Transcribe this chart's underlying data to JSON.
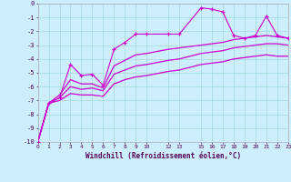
{
  "background_color": "#cceeff",
  "grid_color": "#aadddd",
  "line_color": "#cc00cc",
  "xlabel": "Windchill (Refroidissement éolien,°C)",
  "xlim": [
    0,
    23
  ],
  "ylim": [
    -10,
    0
  ],
  "xtick_vals": [
    0,
    1,
    2,
    3,
    4,
    5,
    6,
    7,
    8,
    9,
    10,
    12,
    13,
    15,
    16,
    17,
    18,
    19,
    20,
    21,
    22,
    23
  ],
  "xtick_labels": [
    "0",
    "1",
    "2",
    "3",
    "4",
    "5",
    "6",
    "7",
    "8",
    "9",
    "10",
    "12",
    "13",
    "15",
    "16",
    "17",
    "18",
    "19",
    "20",
    "21",
    "22",
    "23"
  ],
  "ytick_vals": [
    0,
    -1,
    -2,
    -3,
    -4,
    -5,
    -6,
    -7,
    -8,
    -9,
    -10
  ],
  "ytick_labels": [
    "0",
    "-1",
    "-2",
    "-3",
    "-4",
    "-5",
    "-6",
    "-7",
    "-8",
    "-9",
    "-10"
  ],
  "line1_x": [
    0,
    1,
    2,
    3,
    4,
    5,
    6,
    7,
    8,
    9,
    10,
    12,
    13,
    15,
    16,
    17,
    18,
    19,
    20,
    21,
    22,
    23
  ],
  "line1_y": [
    -10.0,
    -7.2,
    -6.8,
    -4.4,
    -5.2,
    -5.1,
    -5.9,
    -3.3,
    -2.8,
    -2.2,
    -2.2,
    -2.2,
    -2.2,
    -0.3,
    -0.4,
    -0.6,
    -2.3,
    -2.5,
    -2.3,
    -0.9,
    -2.3,
    -2.5
  ],
  "line2_x": [
    0,
    1,
    2,
    3,
    4,
    5,
    6,
    7,
    8,
    9,
    10,
    12,
    13,
    15,
    16,
    17,
    18,
    19,
    20,
    21,
    22,
    23
  ],
  "line2_y": [
    -10.0,
    -7.2,
    -6.6,
    -5.5,
    -5.8,
    -5.8,
    -6.1,
    -4.5,
    -4.1,
    -3.7,
    -3.6,
    -3.3,
    -3.2,
    -3.0,
    -2.9,
    -2.8,
    -2.6,
    -2.5,
    -2.4,
    -2.3,
    -2.4,
    -2.5
  ],
  "line3_x": [
    0,
    1,
    2,
    3,
    4,
    5,
    6,
    7,
    8,
    9,
    10,
    12,
    13,
    15,
    16,
    17,
    18,
    19,
    20,
    21,
    22,
    23
  ],
  "line3_y": [
    -10.0,
    -7.2,
    -6.8,
    -6.0,
    -6.2,
    -6.1,
    -6.3,
    -5.1,
    -4.8,
    -4.5,
    -4.4,
    -4.1,
    -4.0,
    -3.6,
    -3.5,
    -3.4,
    -3.2,
    -3.1,
    -3.0,
    -2.9,
    -2.9,
    -3.0
  ],
  "line4_x": [
    0,
    1,
    2,
    3,
    4,
    5,
    6,
    7,
    8,
    9,
    10,
    12,
    13,
    15,
    16,
    17,
    18,
    19,
    20,
    21,
    22,
    23
  ],
  "line4_y": [
    -10.0,
    -7.2,
    -7.0,
    -6.5,
    -6.6,
    -6.6,
    -6.7,
    -5.8,
    -5.5,
    -5.3,
    -5.2,
    -4.9,
    -4.8,
    -4.4,
    -4.3,
    -4.2,
    -4.0,
    -3.9,
    -3.8,
    -3.7,
    -3.8,
    -3.8
  ]
}
